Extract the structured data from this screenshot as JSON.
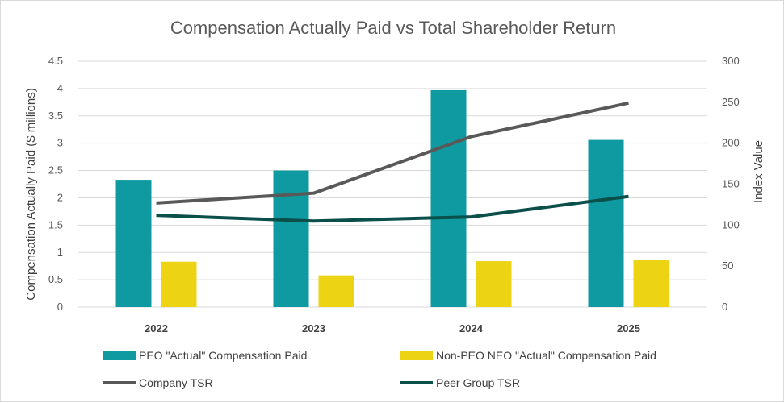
{
  "chart_data": {
    "type": "bar",
    "title": "Compensation Actually Paid vs Total Shareholder Return",
    "categories": [
      "2022",
      "2023",
      "2024",
      "2025"
    ],
    "ylabel": "Compensation Actually Paid ($ millions)",
    "ylim": [
      0,
      4.5
    ],
    "yticks": [
      "0",
      "0.5",
      "1",
      "1.5",
      "2",
      "2.5",
      "3",
      "3.5",
      "4",
      "4.5"
    ],
    "y2label": "Index Value",
    "y2lim": [
      0,
      300
    ],
    "y2ticks": [
      "0",
      "50",
      "100",
      "150",
      "200",
      "250",
      "300"
    ],
    "gridlines": true,
    "legend_position": "bottom",
    "series": [
      {
        "name": "PEO \"Actual\" Compensation Paid",
        "kind": "bar",
        "axis": "left",
        "color": "#0e9aa0",
        "values": [
          2.33,
          2.5,
          3.97,
          3.06
        ]
      },
      {
        "name": "Non-PEO NEO \"Actual\" Compensation Paid",
        "kind": "bar",
        "axis": "left",
        "color": "#ecd314",
        "values": [
          0.83,
          0.58,
          0.84,
          0.87
        ]
      },
      {
        "name": "Company TSR",
        "kind": "line",
        "axis": "right",
        "color": "#595959",
        "values": [
          127,
          139,
          208,
          249
        ]
      },
      {
        "name": "Peer Group TSR",
        "kind": "line",
        "axis": "right",
        "color": "#0a4f4a",
        "values": [
          112,
          105,
          110,
          135
        ]
      }
    ]
  }
}
